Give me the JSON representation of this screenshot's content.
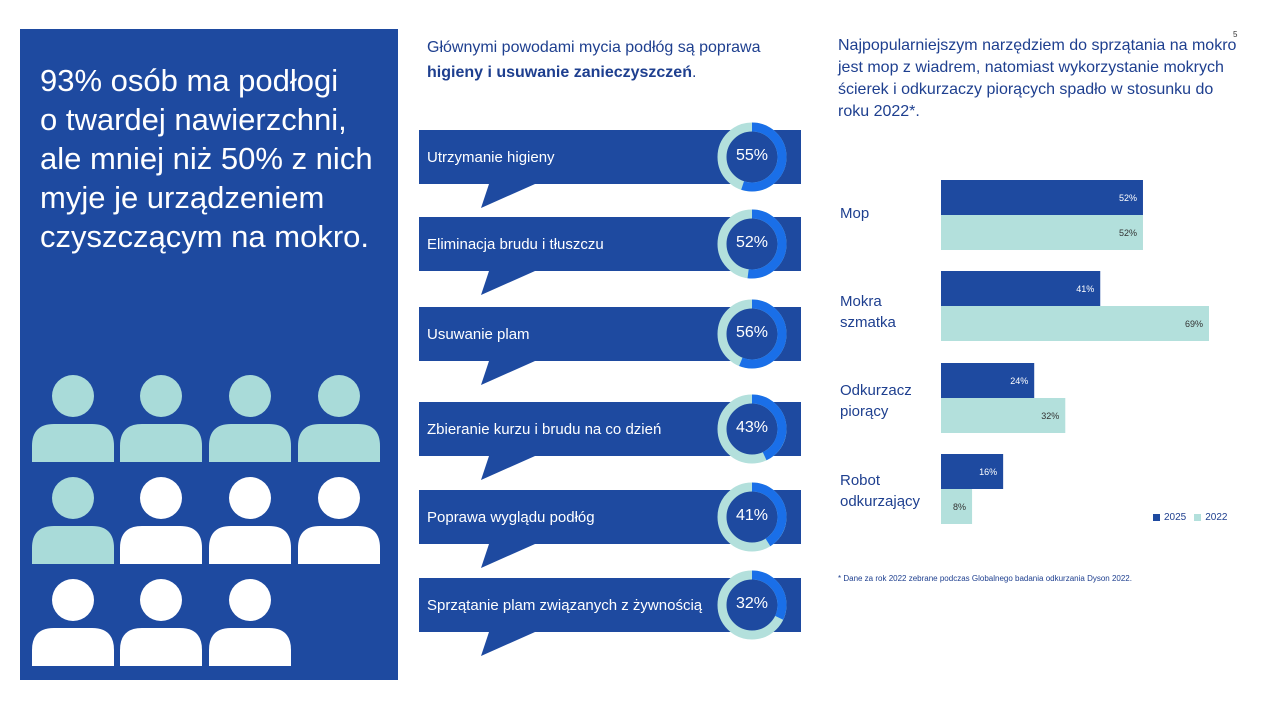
{
  "page_number": "5",
  "left_panel": {
    "headline": "93% osób ma podłogi\no twardej nawierzchni,\nale mniej niż 50% z nich\nmyje je urządzeniem\nczyszczącym na mokro.",
    "people": {
      "total": 11,
      "highlighted": 5,
      "highlight_color": "#a9dbd9",
      "base_color": "#ffffff"
    }
  },
  "reasons": {
    "title_plain": "Głównymi powodami mycia podłóg są poprawa ",
    "title_bold": "higieny i usuwanie zanieczyszczeń",
    "title_end": ".",
    "items": [
      {
        "label": "Utrzymanie higieny",
        "value": 55,
        "display": "55%"
      },
      {
        "label": "Eliminacja brudu i tłuszczu",
        "value": 52,
        "display": "52%"
      },
      {
        "label": "Usuwanie plam",
        "value": 56,
        "display": "56%"
      },
      {
        "label": "Zbieranie kurzu i brudu na co dzień",
        "value": 43,
        "display": "43%"
      },
      {
        "label": "Poprawa wyglądu podłóg",
        "value": 41,
        "display": "41%"
      },
      {
        "label": "Sprzątanie plam związanych z żywnością",
        "value": 32,
        "display": "32%"
      }
    ]
  },
  "tools": {
    "title": "Najpopularniejszym narzędziem do sprzątania na mokro jest mop z wiadrem, natomiast wykorzystanie mokrych ścierek i odkurzaczy piorących spadło w stosunku do roku 2022*.",
    "footnote": "* Dane za rok 2022 zebrane podczas Globalnego badania odkurzania Dyson 2022."
  },
  "chart_data": {
    "type": "bar",
    "orientation": "horizontal",
    "categories": [
      "Mop",
      "Mokra\nszmatka",
      "Odkurzacz\npiorący",
      "Robot\nodkurzający"
    ],
    "series": [
      {
        "name": "2025",
        "values": [
          52,
          41,
          24,
          16
        ],
        "labels": [
          "52%",
          "41%",
          "24%",
          "16%"
        ],
        "color": "#1e4aa0"
      },
      {
        "name": "2022",
        "values": [
          52,
          69,
          32,
          8
        ],
        "labels": [
          "52%",
          "69%",
          "32%",
          "8%"
        ],
        "color": "#b3e0dc"
      }
    ],
    "xlim": [
      0,
      70
    ],
    "legend": "bottom-right",
    "grid": false
  },
  "colors": {
    "navy": "#1e4aa0",
    "teal": "#b3e0dc",
    "ring_bright": "#1a6fe8",
    "text_blue": "#1e3f8f"
  }
}
